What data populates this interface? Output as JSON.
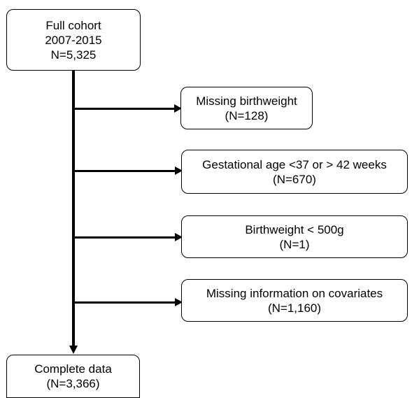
{
  "flowchart": {
    "start": {
      "line1": "Full cohort",
      "line2": "2007-2015",
      "line3": "N=5,325"
    },
    "exclusions": [
      {
        "label": "Missing birthweight",
        "count": "(N=128)"
      },
      {
        "label": "Gestational age <37 or > 42 weeks",
        "count": "(N=670)"
      },
      {
        "label": "Birthweight < 500g",
        "count": "(N=1)"
      },
      {
        "label": "Missing information on covariates",
        "count": "(N=1,160)"
      }
    ],
    "end": {
      "line1": "Complete data",
      "line2": "(N=3,366)"
    }
  },
  "colors": {
    "line": "#000000",
    "box_border": "#000000",
    "background": "#ffffff"
  }
}
